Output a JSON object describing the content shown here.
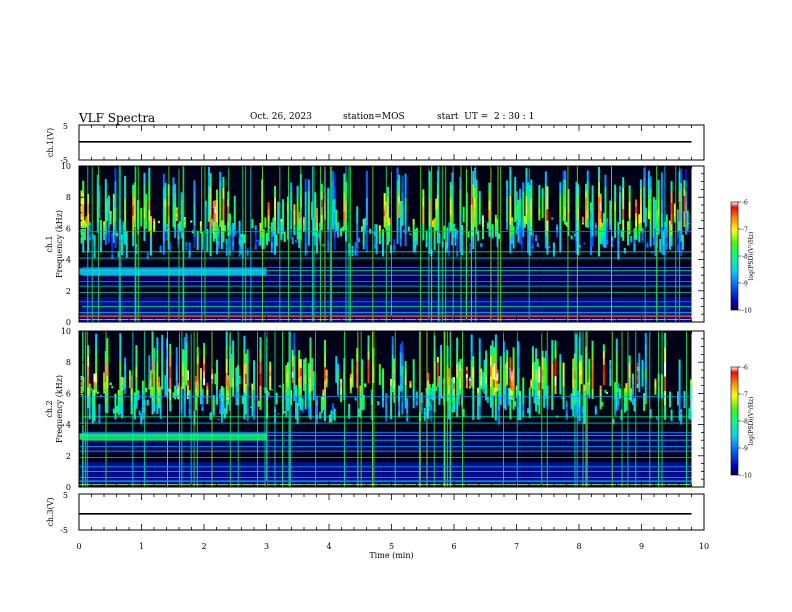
{
  "header": {
    "title": "VLF Spectra",
    "date": "Oct. 26, 2023",
    "station": "station=MOS",
    "start_ut": "start  UT =  2 : 30 : 1"
  },
  "chart_data": [
    {
      "type": "line",
      "ylabel": "ch.1(V)",
      "ylim": [
        -5,
        5
      ],
      "yticks": [
        "5",
        "-5"
      ],
      "series": [
        {
          "x": [
            0,
            9.8
          ],
          "y": [
            0.2,
            0.2
          ]
        }
      ]
    },
    {
      "type": "heatmap",
      "ylabel_top": "ch.1",
      "ylabel": "Frequency (kHz)",
      "ylim": [
        0,
        10
      ],
      "yticks": [
        "0",
        "2",
        "4",
        "6",
        "8",
        "10"
      ],
      "xlim": [
        0,
        10
      ],
      "data_xmax": 9.8,
      "colorbar": {
        "label": "log(PSD)(V²/Hz)",
        "range": [
          -10,
          -6
        ],
        "ticks": [
          "-6",
          "-7",
          "-8",
          "-9",
          "-10"
        ]
      }
    },
    {
      "type": "heatmap",
      "ylabel_top": "ch.2",
      "ylabel": "Frequency (kHz)",
      "ylim": [
        0,
        10
      ],
      "yticks": [
        "0",
        "2",
        "4",
        "6",
        "8",
        "10"
      ],
      "xlim": [
        0,
        10
      ],
      "data_xmax": 9.8,
      "colorbar": {
        "label": "log(PSD)(V²/Hz)",
        "range": [
          -10,
          -6
        ],
        "ticks": [
          "-6",
          "-7",
          "-8",
          "-9",
          "-10"
        ]
      }
    },
    {
      "type": "line",
      "ylabel": "ch.3(V)",
      "ylim": [
        -5,
        5
      ],
      "yticks": [
        "5",
        "-5"
      ],
      "series": [
        {
          "x": [
            0,
            9.8
          ],
          "y": [
            -0.5,
            -0.5
          ]
        }
      ]
    }
  ],
  "xaxis": {
    "label": "Time (min)",
    "range": [
      0,
      10
    ],
    "ticks": [
      "0",
      "1",
      "2",
      "3",
      "4",
      "5",
      "6",
      "7",
      "8",
      "9",
      "10"
    ]
  }
}
